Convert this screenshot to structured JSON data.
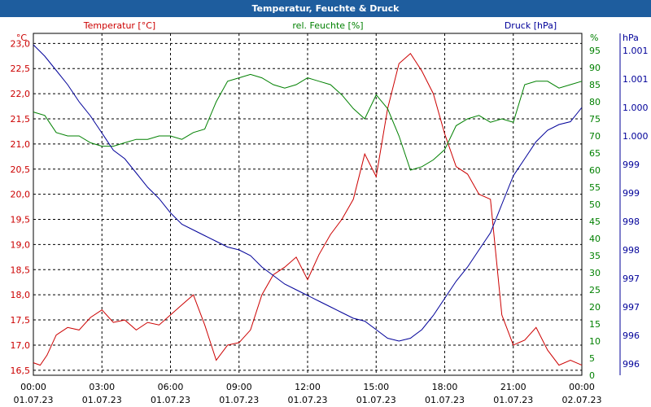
{
  "chart_data": {
    "type": "line",
    "title": "Temperatur, Feuchte & Druck",
    "x_labels": [
      {
        "time": "00:00",
        "date": "01.07.23"
      },
      {
        "time": "03:00",
        "date": "01.07.23"
      },
      {
        "time": "06:00",
        "date": "01.07.23"
      },
      {
        "time": "09:00",
        "date": "01.07.23"
      },
      {
        "time": "12:00",
        "date": "01.07.23"
      },
      {
        "time": "15:00",
        "date": "01.07.23"
      },
      {
        "time": "18:00",
        "date": "01.07.23"
      },
      {
        "time": "21:00",
        "date": "01.07.23"
      },
      {
        "time": "00:00",
        "date": "02.07.23"
      }
    ],
    "x_range_hours": [
      0,
      24
    ],
    "axes": {
      "temperature": {
        "label": "Temperatur [°C]",
        "unit": "°C",
        "range": [
          16.4,
          23.2
        ],
        "color": "#cc0000",
        "ticks": [
          "23,0",
          "22,5",
          "22,0",
          "21,5",
          "21,0",
          "20,5",
          "20,0",
          "19,5",
          "19,0",
          "18,5",
          "18,0",
          "17,5",
          "17,0",
          "16,5"
        ],
        "tick_values": [
          23.0,
          22.5,
          22.0,
          21.5,
          21.0,
          20.5,
          20.0,
          19.5,
          19.0,
          18.5,
          18.0,
          17.5,
          17.0,
          16.5
        ]
      },
      "humidity": {
        "label": "rel. Feuchte [%]",
        "unit": "%",
        "range": [
          0,
          100
        ],
        "color": "#008000",
        "ticks": [
          "95",
          "90",
          "85",
          "80",
          "75",
          "70",
          "65",
          "60",
          "55",
          "50",
          "45",
          "40",
          "35",
          "30",
          "25",
          "20",
          "15",
          "10",
          "5",
          "0"
        ],
        "tick_values": [
          95,
          90,
          85,
          80,
          75,
          70,
          65,
          60,
          55,
          50,
          45,
          40,
          35,
          30,
          25,
          20,
          15,
          10,
          5,
          0
        ]
      },
      "pressure": {
        "label": "Druck [hPa]",
        "unit": "hPa",
        "range": [
          995.5,
          1001.5
        ],
        "color": "#000099",
        "ticks": [
          "1.001",
          "1.001",
          "1.000",
          "1.000",
          "999",
          "999",
          "998",
          "998",
          "997",
          "997",
          "996",
          "996"
        ],
        "tick_values": [
          1001.2,
          1000.7,
          1000.2,
          999.7,
          999.2,
          998.7,
          998.2,
          997.7,
          997.2,
          996.7,
          996.2,
          995.7
        ]
      }
    },
    "series": [
      {
        "name": "Temperatur",
        "axis": "temperature",
        "x": [
          0,
          0.3,
          0.6,
          1,
          1.5,
          2,
          2.5,
          3,
          3.5,
          4,
          4.5,
          5,
          5.5,
          6,
          6.5,
          7,
          7.5,
          8,
          8.5,
          9,
          9.5,
          10,
          10.5,
          11,
          11.5,
          12,
          12.5,
          13,
          13.5,
          14,
          14.5,
          15,
          15.5,
          16,
          16.5,
          17,
          17.5,
          18,
          18.5,
          19,
          19.5,
          20,
          20.5,
          21,
          21.5,
          22,
          22.5,
          23,
          23.5,
          24
        ],
        "y": [
          16.65,
          16.6,
          16.8,
          17.2,
          17.35,
          17.3,
          17.55,
          17.7,
          17.45,
          17.5,
          17.3,
          17.45,
          17.4,
          17.6,
          17.8,
          18.0,
          17.4,
          16.7,
          17.0,
          17.05,
          17.3,
          18.0,
          18.4,
          18.55,
          18.75,
          18.3,
          18.8,
          19.2,
          19.5,
          19.9,
          20.8,
          20.35,
          21.7,
          22.6,
          22.8,
          22.45,
          22.0,
          21.2,
          20.55,
          20.4,
          20.0,
          19.9,
          17.6,
          17.0,
          17.1,
          17.35,
          16.9,
          16.6,
          16.7,
          16.6
        ]
      },
      {
        "name": "rel. Feuchte",
        "axis": "humidity",
        "x": [
          0,
          0.5,
          1,
          1.5,
          2,
          2.5,
          3,
          3.5,
          4,
          4.5,
          5,
          5.5,
          6,
          6.5,
          7,
          7.5,
          8,
          8.5,
          9,
          9.5,
          10,
          10.5,
          11,
          11.5,
          12,
          12.5,
          13,
          13.5,
          14,
          14.5,
          15,
          15.5,
          16,
          16.5,
          17,
          17.5,
          18,
          18.5,
          19,
          19.5,
          20,
          20.5,
          21,
          21.5,
          22,
          22.5,
          23,
          23.5,
          24
        ],
        "y": [
          77,
          76,
          71,
          70,
          70,
          68,
          67,
          67,
          68,
          69,
          69,
          70,
          70,
          69,
          71,
          72,
          80,
          86,
          87,
          88,
          87,
          85,
          84,
          85,
          87,
          86,
          85,
          82,
          78,
          75,
          82,
          78,
          70,
          60,
          61,
          63,
          66,
          73,
          75,
          76,
          74,
          75,
          74,
          85,
          86,
          86,
          84,
          85,
          86
        ]
      },
      {
        "name": "Druck",
        "axis": "pressure",
        "x": [
          0,
          0.5,
          1,
          1.5,
          2,
          2.5,
          3,
          3.5,
          4,
          4.5,
          5,
          5.5,
          6,
          6.5,
          7,
          7.5,
          8,
          8.5,
          9,
          9.5,
          10,
          10.5,
          11,
          11.5,
          12,
          12.5,
          13,
          13.5,
          14,
          14.5,
          15,
          15.5,
          16,
          16.5,
          17,
          17.5,
          18,
          18.5,
          19,
          19.5,
          20,
          20.5,
          21,
          21.5,
          22,
          22.5,
          23,
          23.5,
          24
        ],
        "y": [
          1001.3,
          1001.1,
          1000.85,
          1000.6,
          1000.3,
          1000.05,
          999.75,
          999.45,
          999.3,
          999.05,
          998.8,
          998.6,
          998.35,
          998.15,
          998.05,
          997.95,
          997.85,
          997.75,
          997.7,
          997.6,
          997.4,
          997.25,
          997.1,
          997.0,
          996.9,
          996.8,
          996.7,
          996.6,
          996.5,
          996.45,
          996.3,
          996.15,
          996.1,
          996.15,
          996.3,
          996.55,
          996.85,
          997.15,
          997.4,
          997.7,
          998.0,
          998.5,
          999.0,
          999.3,
          999.6,
          999.8,
          999.9,
          999.95,
          1000.2
        ]
      }
    ]
  }
}
